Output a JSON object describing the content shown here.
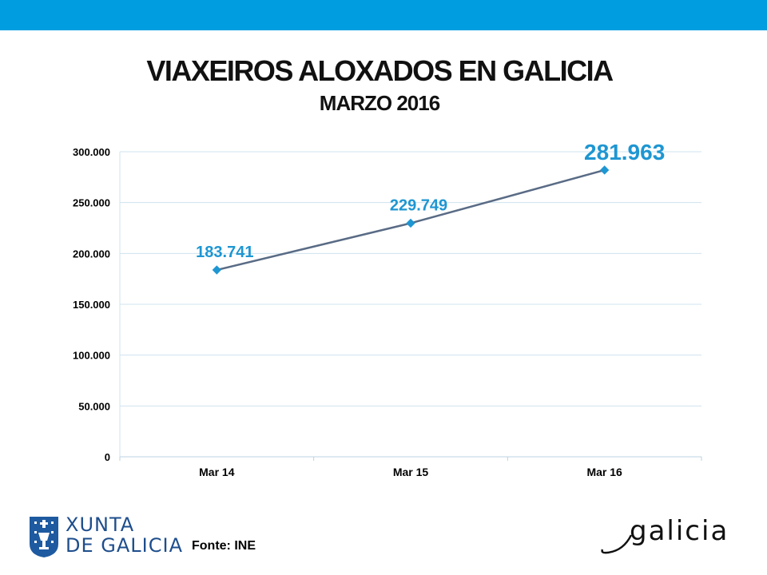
{
  "colors": {
    "header_bar": "#009ee0",
    "line": "#596b85",
    "marker": "#1e96d2",
    "data_label": "#1e96d2",
    "grid": "#cfe3ef"
  },
  "slide": {
    "title": "VIAXEIROS ALOXADOS EN GALICIA",
    "subtitle": "MARZO 2016",
    "source": "Fonte: INE"
  },
  "logos": {
    "xunta_line1": "XUNTA",
    "xunta_line2": "DE GALICIA",
    "galicia": "galicia"
  },
  "chart_data": {
    "type": "line",
    "categories": [
      "Mar 14",
      "Mar 15",
      "Mar 16"
    ],
    "series": [
      {
        "values": [
          183741,
          229749,
          281963
        ]
      }
    ],
    "data_labels": [
      "183.741",
      "229.749",
      "281.963"
    ],
    "y_ticks": [
      0,
      50000,
      100000,
      150000,
      200000,
      250000,
      300000
    ],
    "y_tick_labels": [
      "0",
      "50.000",
      "100.000",
      "150.000",
      "200.000",
      "250.000",
      "300.000"
    ],
    "ylim": [
      0,
      300000
    ],
    "grid": true,
    "legend": "none",
    "xlabel": "",
    "ylabel": ""
  }
}
